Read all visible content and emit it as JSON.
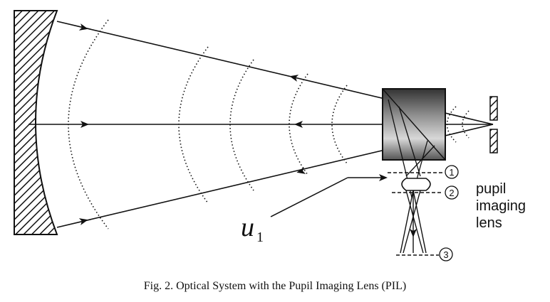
{
  "diagram": {
    "symbol_label": {
      "main": "u",
      "subscript": "1"
    },
    "plane_markers": [
      "1",
      "2",
      "3"
    ],
    "lens_label": [
      "pupil",
      "imaging",
      "lens"
    ],
    "caption": "Fig. 2.  Optical System with the Pupil Imaging Lens (PIL)"
  },
  "colors": {
    "ink": "#111111",
    "background": "#ffffff",
    "prism_dark": "#3a3a3a",
    "prism_light": "#f4f4f4"
  }
}
